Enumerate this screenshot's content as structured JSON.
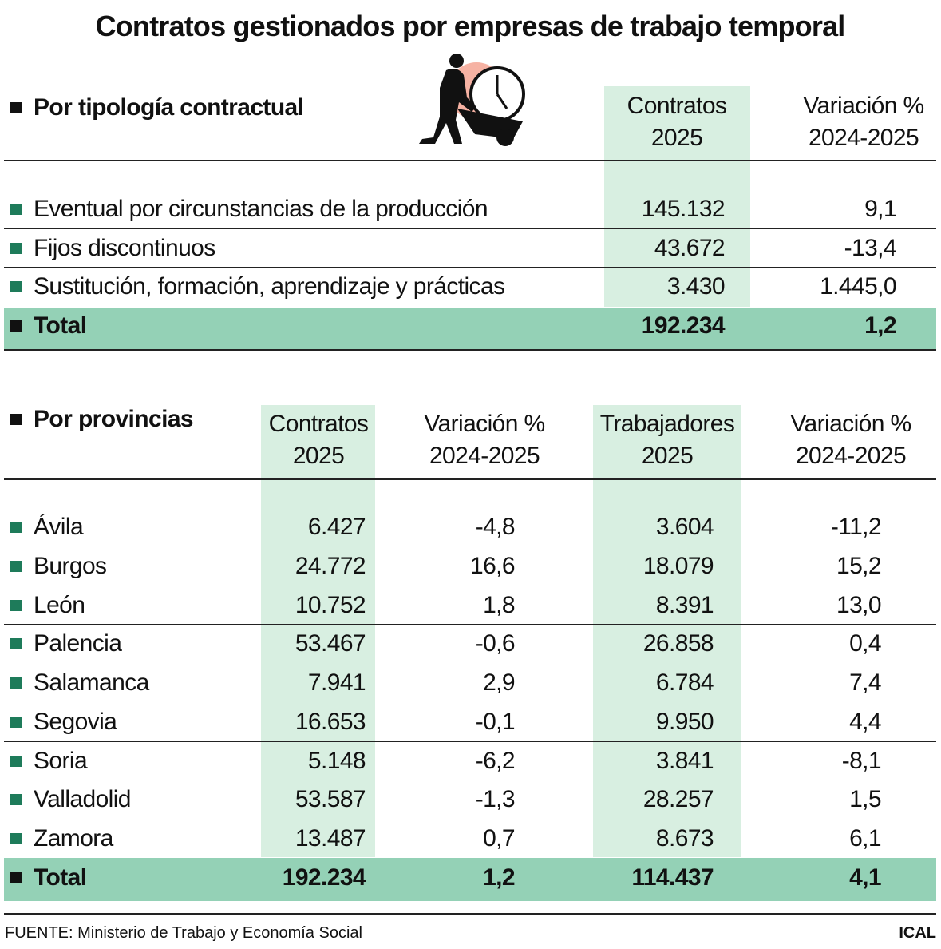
{
  "title": "Contratos gestionados por empresas de trabajo temporal",
  "table1": {
    "heading": "Por tipología contractual",
    "headers": [
      [
        "Contratos",
        "2025"
      ],
      [
        "Variación %",
        "2024-2025"
      ]
    ],
    "rows": [
      [
        "Eventual por circunstancias de la producción",
        "145.132",
        "9,1"
      ],
      [
        "Fijos discontinuos",
        "43.672",
        "-13,4"
      ],
      [
        "Sustitución, formación, aprendizaje y prácticas",
        "3.430",
        "1.445,0"
      ]
    ],
    "total": [
      "Total",
      "192.234",
      "1,2"
    ]
  },
  "table2": {
    "heading": "Por provincias",
    "headers": [
      [
        "Contratos",
        "2025"
      ],
      [
        "Variación %",
        "2024-2025"
      ],
      [
        "Trabajadores",
        "2025"
      ],
      [
        "Variación %",
        "2024-2025"
      ]
    ],
    "rows": [
      [
        "Ávila",
        "6.427",
        "-4,8",
        "3.604",
        "-11,2"
      ],
      [
        "Burgos",
        "24.772",
        "16,6",
        "18.079",
        "15,2"
      ],
      [
        "León",
        "10.752",
        "1,8",
        "8.391",
        "13,0"
      ],
      [
        "Palencia",
        "53.467",
        "-0,6",
        "26.858",
        "0,4"
      ],
      [
        "Salamanca",
        "7.941",
        "2,9",
        "6.784",
        "7,4"
      ],
      [
        "Segovia",
        "16.653",
        "-0,1",
        "9.950",
        "4,4"
      ],
      [
        "Soria",
        "5.148",
        "-6,2",
        "3.841",
        "-8,1"
      ],
      [
        "Valladolid",
        "53.587",
        "-1,3",
        "28.257",
        "1,5"
      ],
      [
        "Zamora",
        "13.487",
        "0,7",
        "8.673",
        "6,1"
      ]
    ],
    "total": [
      "Total",
      "192.234",
      "1,2",
      "114.437",
      "4,1"
    ]
  },
  "footer": {
    "source": "FUENTE:  Ministerio de Trabajo y Economía Social",
    "brand": "ICAL"
  }
}
